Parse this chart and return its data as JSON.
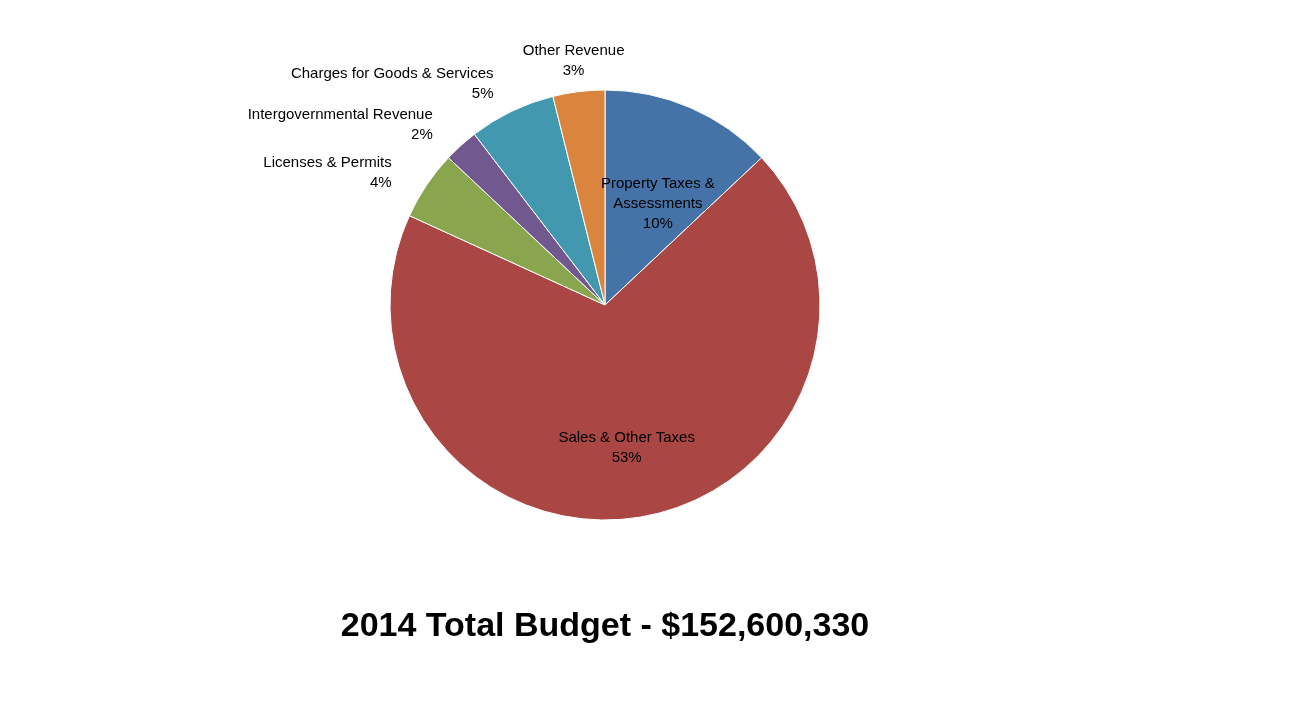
{
  "chart_data": {
    "type": "pie",
    "title": "2014 Total Budget - $152,600,330",
    "categories": [
      "Property Taxes & Assessments",
      "Sales & Other Taxes",
      "Licenses & Permits",
      "Intergovernmental Revenue",
      "Charges for Goods & Services",
      "Other Revenue"
    ],
    "values": [
      10,
      53,
      4,
      2,
      5,
      3
    ],
    "value_labels": [
      "10%",
      "53%",
      "4%",
      "2%",
      "5%",
      "3%"
    ],
    "colors": [
      "#4572a7",
      "#aa4643",
      "#89a54e",
      "#71588f",
      "#4198af",
      "#db843d"
    ],
    "legend": false
  }
}
